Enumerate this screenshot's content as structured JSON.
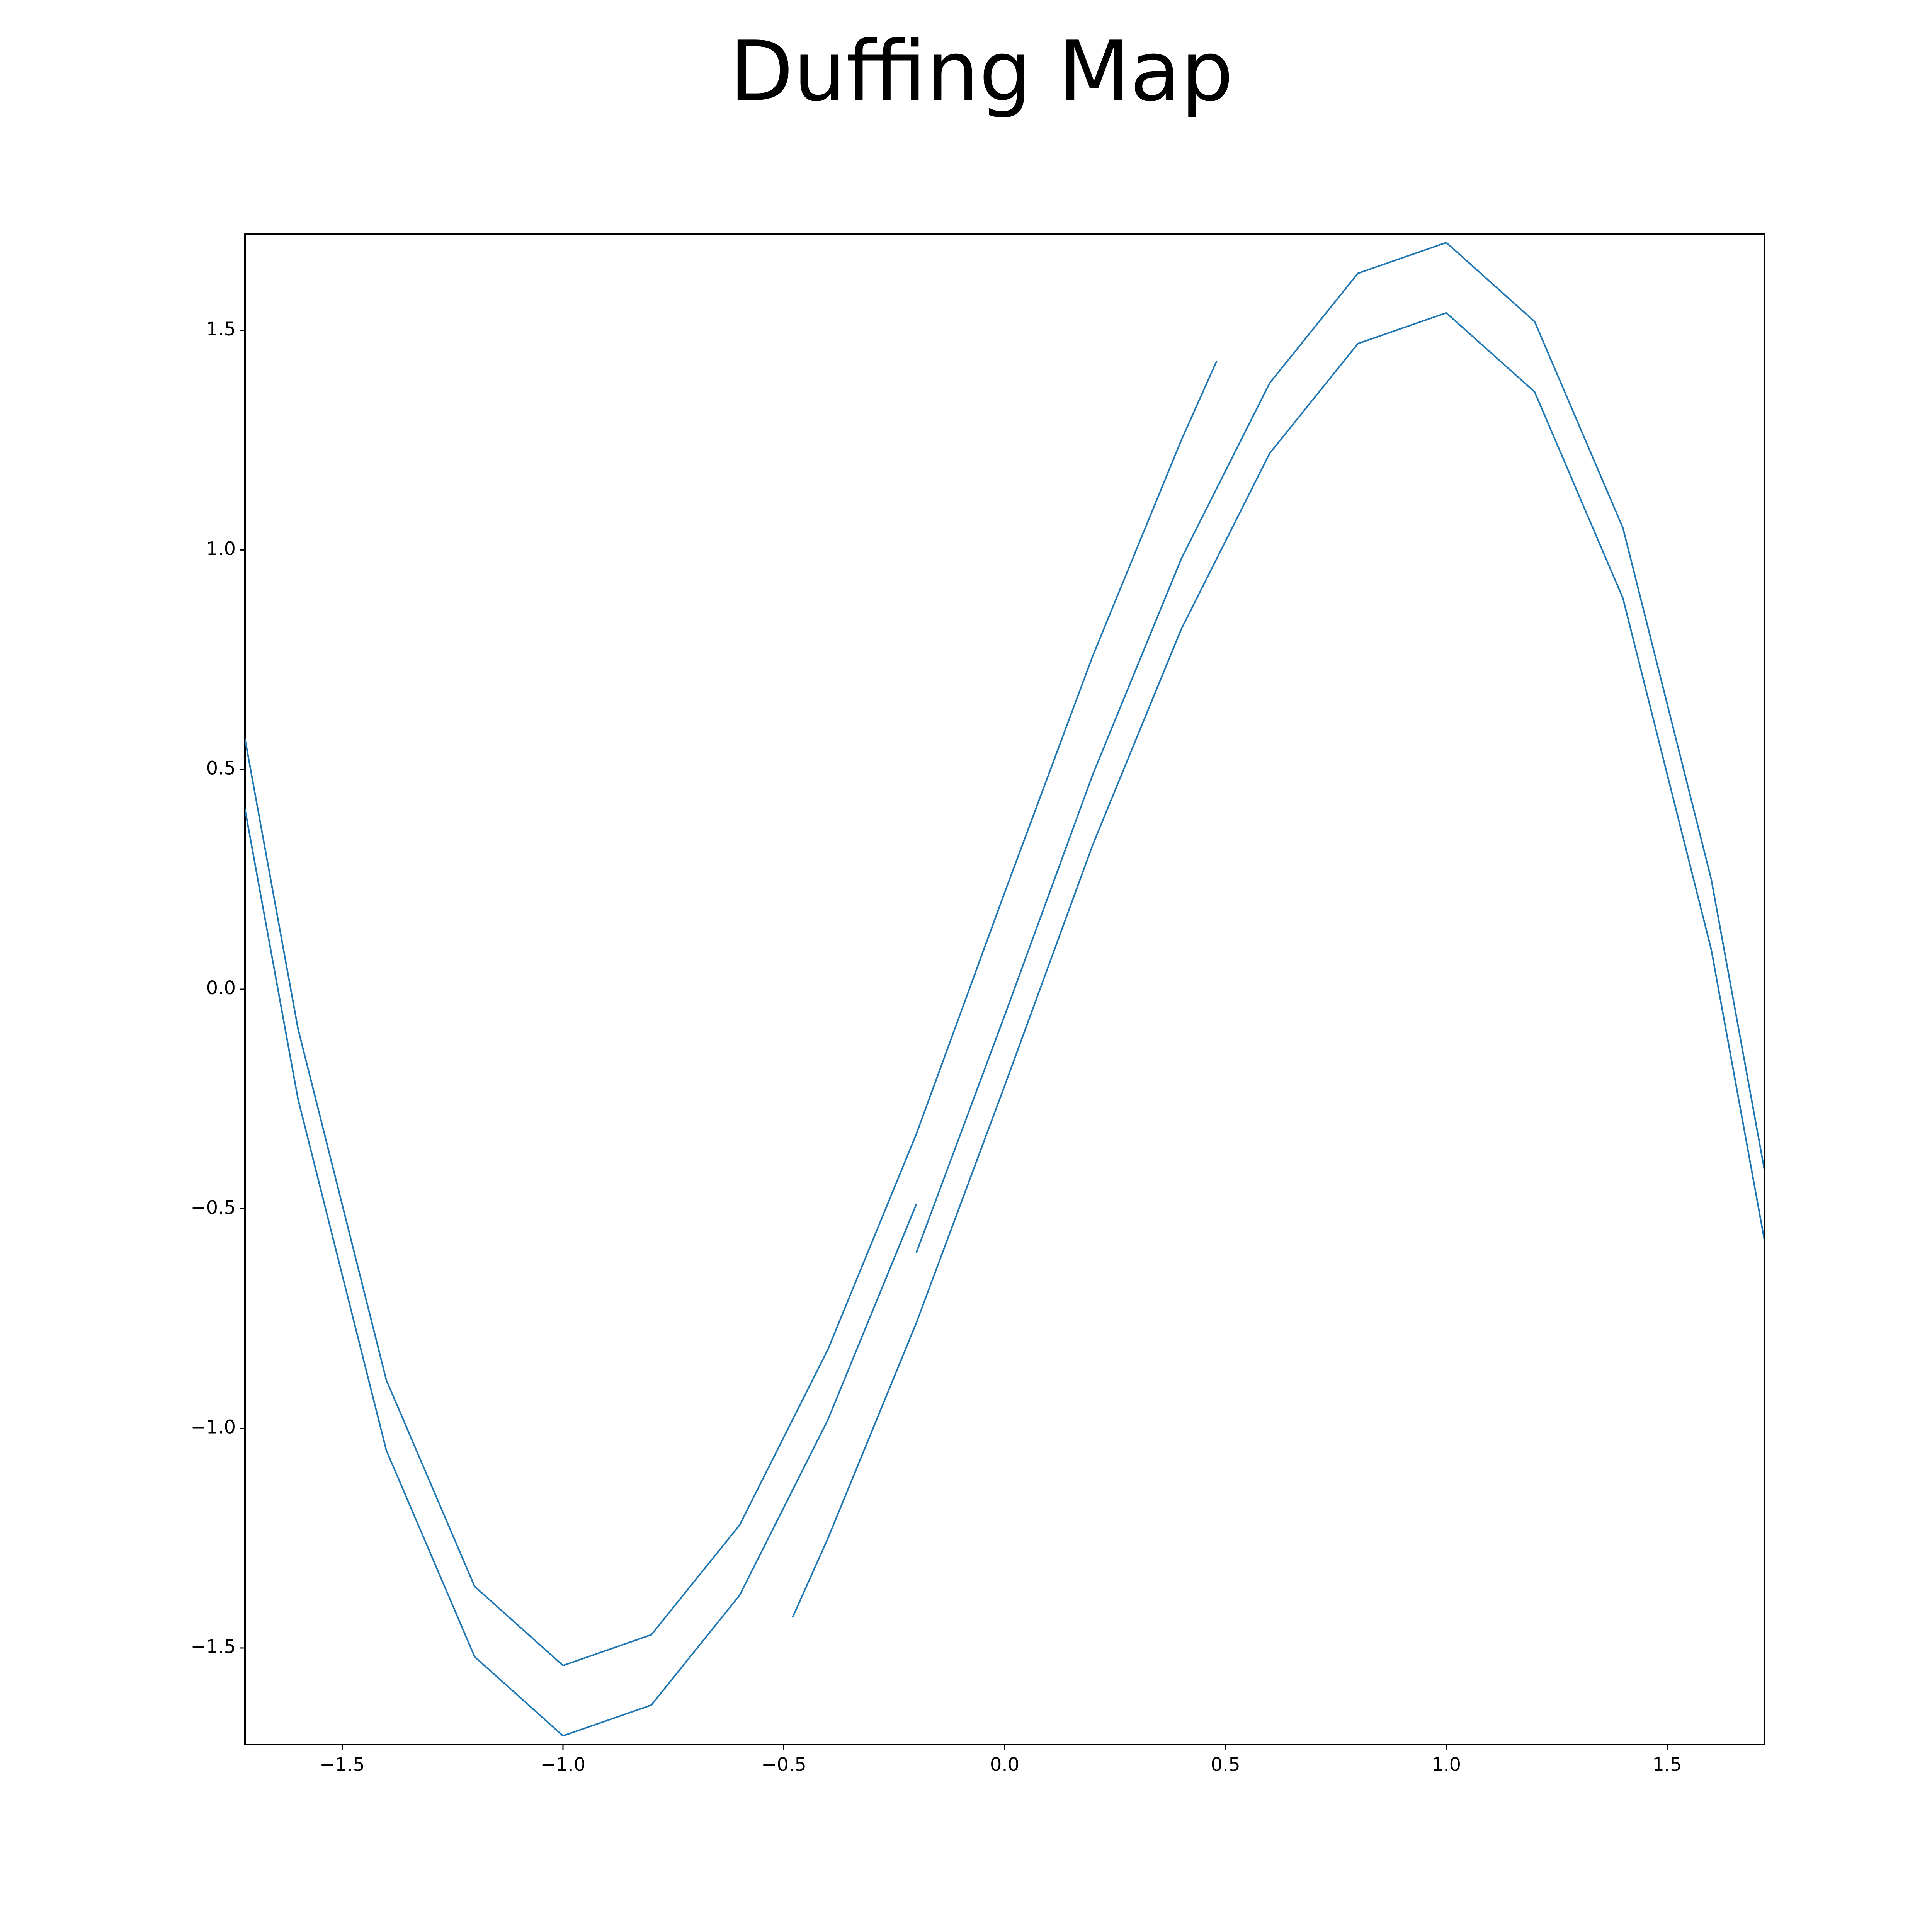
{
  "chart_data": {
    "type": "line",
    "title": "Duffing Map",
    "color": "#1f77b4",
    "x": [
      -0.48,
      -0.4,
      -0.2,
      0,
      0.2,
      0.4,
      0.6,
      0.8,
      1.0,
      1.2,
      1.4,
      1.6,
      1.72,
      null,
      -1.72,
      -1.6,
      -1.4,
      -1.2,
      -1.0,
      -0.8,
      -0.6,
      -0.4,
      -0.2,
      0,
      0.2,
      0.4,
      0.48,
      null,
      -0.2,
      0,
      0.2,
      0.4,
      0.6,
      0.8,
      1.0,
      1.2,
      1.4,
      1.6,
      1.72,
      null,
      -1.72,
      -1.6,
      -1.4,
      -1.2,
      -1.0,
      -0.8,
      -0.6,
      -0.4,
      -0.2
    ],
    "y": [
      -1.43,
      -1.25,
      -0.76,
      -0.22,
      0.33,
      0.82,
      1.22,
      1.47,
      1.54,
      1.36,
      0.89,
      0.09,
      -0.57,
      null,
      0.57,
      -0.09,
      -0.89,
      -1.36,
      -1.54,
      -1.47,
      -1.22,
      -0.82,
      -0.33,
      0.22,
      0.76,
      1.25,
      1.43,
      null,
      -0.6,
      -0.06,
      0.49,
      0.98,
      1.38,
      1.63,
      1.7,
      1.52,
      1.05,
      0.25,
      -0.41,
      null,
      0.41,
      -0.25,
      -1.05,
      -1.52,
      -1.7,
      -1.63,
      -1.38,
      -0.98,
      -0.49
    ],
    "xlim": [
      -1.72,
      1.72
    ],
    "ylim": [
      -1.72,
      1.72
    ],
    "xticks": [
      {
        "value": -1.5,
        "label": "−1.5"
      },
      {
        "value": -1.0,
        "label": "−1.0"
      },
      {
        "value": -0.5,
        "label": "−0.5"
      },
      {
        "value": 0,
        "label": "0.0"
      },
      0.5,
      {
        "value": 1.0,
        "label": "1.0"
      },
      1.5
    ],
    "yticks": [
      {
        "value": -1.5,
        "label": "−1.5"
      },
      {
        "value": -1.0,
        "label": "−1.0"
      },
      {
        "value": -0.5,
        "label": "−0.5"
      },
      {
        "value": 0,
        "label": "0.0"
      },
      0.5,
      {
        "value": 1.0,
        "label": "1.0"
      },
      1.5
    ],
    "grid": false
  }
}
